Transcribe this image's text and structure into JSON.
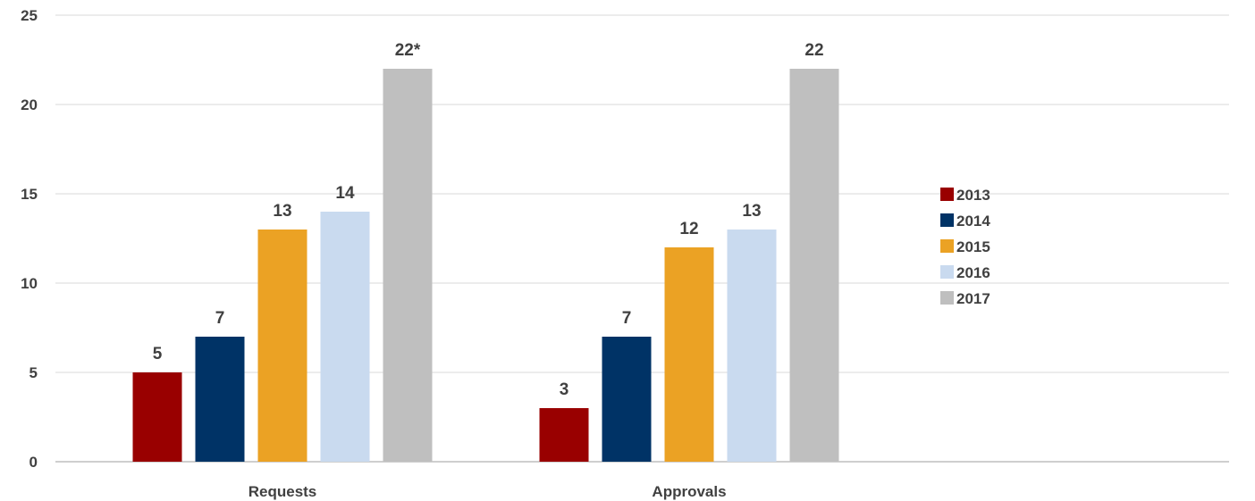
{
  "chart_data": {
    "type": "bar",
    "title": "",
    "xlabel": "",
    "ylabel": "",
    "ylim": [
      0,
      25
    ],
    "yticks": [
      0,
      5,
      10,
      15,
      20,
      25
    ],
    "grid": true,
    "legend_position": "right",
    "categories": [
      "Requests",
      "Approvals"
    ],
    "series": [
      {
        "name": "2013",
        "color": "#990000",
        "values": [
          5,
          3
        ],
        "labels": [
          "5",
          "3"
        ]
      },
      {
        "name": "2014",
        "color": "#003366",
        "values": [
          7,
          7
        ],
        "labels": [
          "7",
          "7"
        ]
      },
      {
        "name": "2015",
        "color": "#EBA224",
        "values": [
          13,
          12
        ],
        "labels": [
          "13",
          "12"
        ]
      },
      {
        "name": "2016",
        "color": "#C9DAEF",
        "values": [
          14,
          13
        ],
        "labels": [
          "14",
          "13"
        ]
      },
      {
        "name": "2017",
        "color": "#BFBFBF",
        "values": [
          22,
          22
        ],
        "labels": [
          "22*",
          "22"
        ]
      }
    ]
  }
}
